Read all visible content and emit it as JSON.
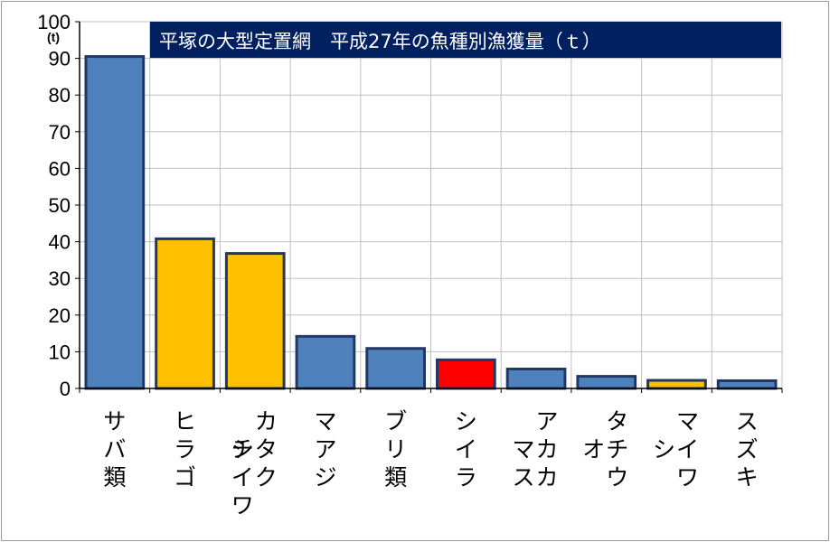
{
  "chart_data": {
    "type": "bar",
    "title": "平塚の大型定置網　平成27年の魚種別漁獲量（ｔ）",
    "unit_label": "(t)",
    "ylim": [
      0,
      100
    ],
    "yticks": [
      0,
      10,
      20,
      30,
      40,
      50,
      60,
      70,
      80,
      90,
      100
    ],
    "grid": true,
    "categories": [
      [
        "サ",
        "バ",
        "類"
      ],
      [
        "ヒ",
        "ラ",
        "ゴ"
      ],
      [
        "カ",
        "タ",
        "ク",
        "チ",
        "イ",
        "ワ",
        "シ"
      ],
      [
        "マ",
        "ア",
        "ジ"
      ],
      [
        "ブ",
        "リ",
        "類"
      ],
      [
        "シ",
        "イ",
        "ラ"
      ],
      [
        "ア",
        "カ",
        "カ",
        "マ",
        "ス"
      ],
      [
        "タ",
        "チ",
        "ウ",
        "オ"
      ],
      [
        "マ",
        "イ",
        "ワ",
        "シ"
      ],
      [
        "ス",
        "ズ",
        "キ"
      ]
    ],
    "values": [
      90.5,
      40.8,
      36.8,
      14.2,
      10.9,
      7.8,
      5.3,
      3.3,
      2.2,
      2.1
    ],
    "bar_colors": [
      "#4f81bd",
      "#ffc000",
      "#ffc000",
      "#4f81bd",
      "#4f81bd",
      "#ff0000",
      "#4f81bd",
      "#4f81bd",
      "#ffc000",
      "#4f81bd"
    ],
    "bar_border_color": "#1f3864",
    "title_background": "#002060",
    "title_color": "#ffffff"
  }
}
